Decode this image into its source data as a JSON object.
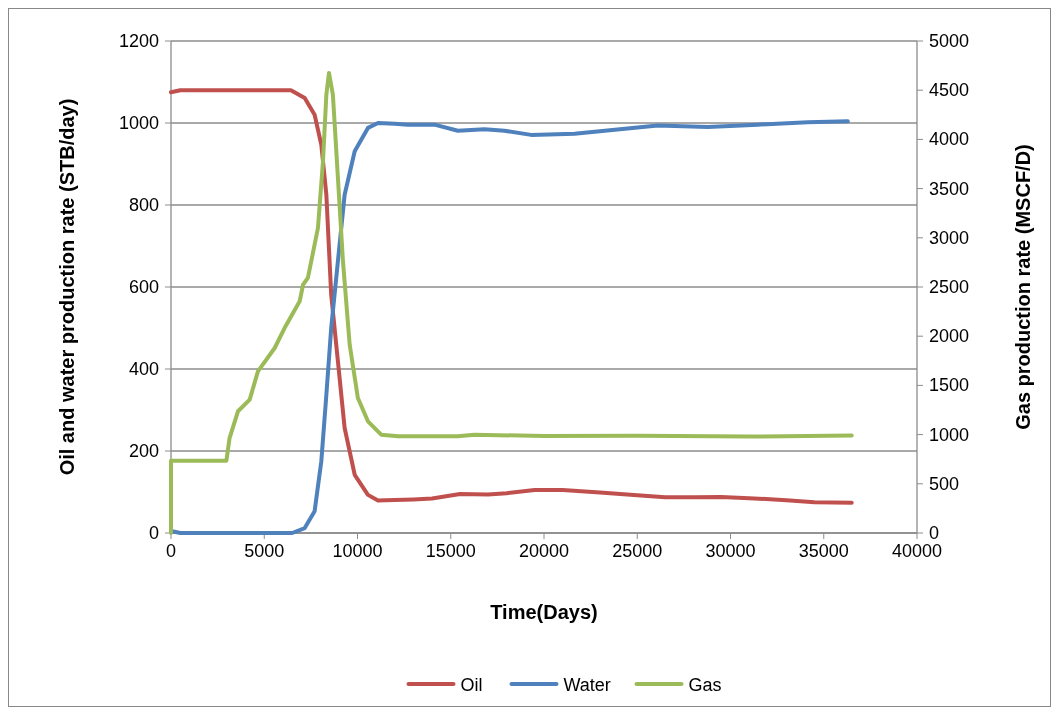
{
  "chart_data": {
    "type": "line",
    "xlabel": "Time(Days)",
    "ylabel": "Oil and water production rate (STB/day)",
    "y2label": "Gas production rate (MSCF/D)",
    "xlim": [
      0,
      40000
    ],
    "xticks": [
      0,
      5000,
      10000,
      15000,
      20000,
      25000,
      30000,
      35000,
      40000
    ],
    "ylim": [
      0,
      1200
    ],
    "yticks": [
      0,
      200,
      400,
      600,
      800,
      1000,
      1200
    ],
    "y2lim": [
      0,
      5000
    ],
    "y2ticks": [
      0,
      500,
      1000,
      1500,
      2000,
      2500,
      3000,
      3500,
      4000,
      4500,
      5000
    ],
    "grid": "y",
    "legend": "bottom",
    "line_style": "solid",
    "series": [
      {
        "name": "Oil",
        "color": "#c0504d",
        "x": [
          0,
          500,
          6430,
          7170,
          7700,
          8060,
          8330,
          8590,
          8950,
          9310,
          9850,
          10560,
          11100,
          11500,
          13000,
          14000,
          15500,
          17000,
          18000,
          19500,
          21000,
          23000,
          25000,
          26500,
          28000,
          29500,
          31000,
          33000,
          34500,
          36500
        ],
        "values": [
          1075,
          1080,
          1080,
          1061,
          1020,
          947,
          825,
          581,
          419,
          256,
          142,
          93,
          79,
          80,
          82,
          84,
          95,
          94,
          97,
          105,
          105,
          99,
          92,
          87,
          87,
          88,
          85,
          80,
          75,
          74
        ]
      },
      {
        "name": "Water",
        "color": "#4f81bd",
        "x": [
          0,
          500,
          6500,
          7170,
          7700,
          8060,
          8330,
          8590,
          8950,
          9310,
          9850,
          10560,
          11100,
          12000,
          12700,
          14130,
          15380,
          16810,
          17880,
          19310,
          21640,
          26100,
          28780,
          31460,
          34140,
          36290
        ],
        "values": [
          5,
          0,
          0,
          12,
          53,
          175,
          337,
          500,
          663,
          825,
          931,
          988,
          1000,
          998,
          996,
          996,
          981,
          985,
          981,
          971,
          974,
          994,
          990,
          996,
          1002,
          1004
        ]
      },
      {
        "name": "Gas",
        "color": "#9bbb59",
        "axis": "y2",
        "x": [
          0,
          0,
          2970,
          3140,
          3590,
          4220,
          4660,
          5560,
          6090,
          6900,
          7080,
          7340,
          7880,
          8150,
          8330,
          8470,
          8680,
          8950,
          9220,
          9580,
          10020,
          10560,
          11270,
          12170,
          15380,
          16280,
          20000,
          25000,
          31000,
          36500
        ],
        "values": [
          0,
          735,
          735,
          965,
          1237,
          1355,
          1643,
          1880,
          2083,
          2355,
          2523,
          2592,
          3100,
          3780,
          4455,
          4675,
          4455,
          3608,
          2762,
          1914,
          1372,
          1135,
          999,
          983,
          983,
          999,
          985,
          988,
          980,
          990
        ]
      }
    ]
  }
}
